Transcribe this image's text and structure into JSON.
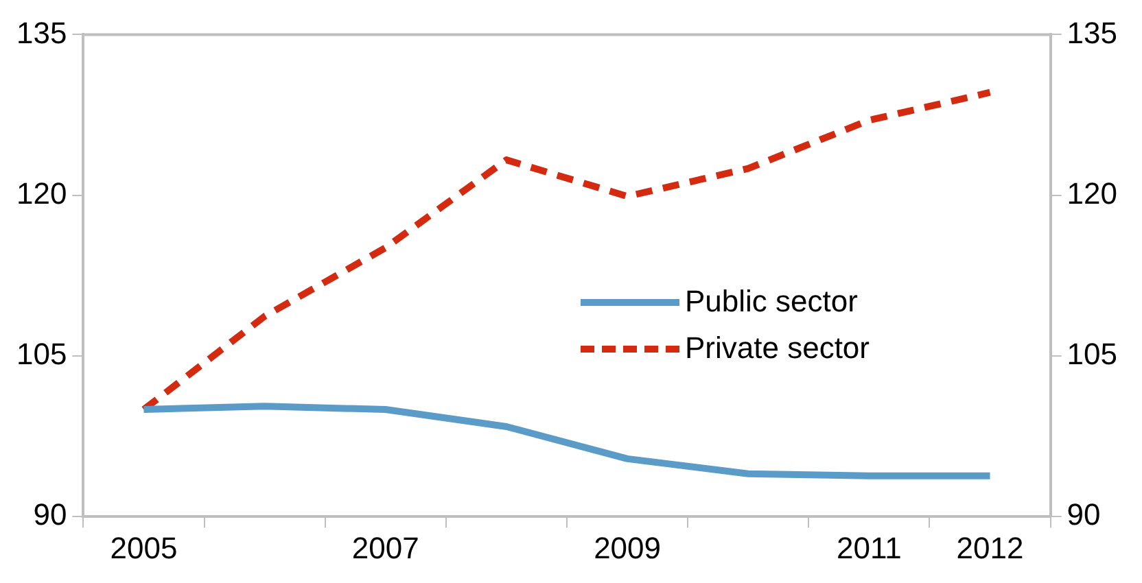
{
  "chart_data": {
    "type": "line",
    "categories": [
      "2005",
      null,
      "2007",
      null,
      "2009",
      null,
      "2011",
      "2012"
    ],
    "series": [
      {
        "name": "Public sector",
        "color": "#5b9bc8",
        "line_style": "solid",
        "values": [
          100,
          100.3,
          100,
          98.4,
          95.4,
          94,
          93.8,
          93.8
        ]
      },
      {
        "name": "Private sector",
        "color": "#d42a10",
        "line_style": "dashed",
        "values": [
          100,
          108.7,
          115.1,
          123.3,
          119.9,
          122.5,
          127,
          129.6
        ]
      }
    ],
    "ylim": [
      90,
      135
    ],
    "yticks": [
      90,
      105,
      120,
      135
    ],
    "y2lim": [
      90,
      135
    ],
    "y2ticks": [
      90,
      105,
      120,
      135
    ],
    "grid": false,
    "legend": "right",
    "marker": "none"
  }
}
